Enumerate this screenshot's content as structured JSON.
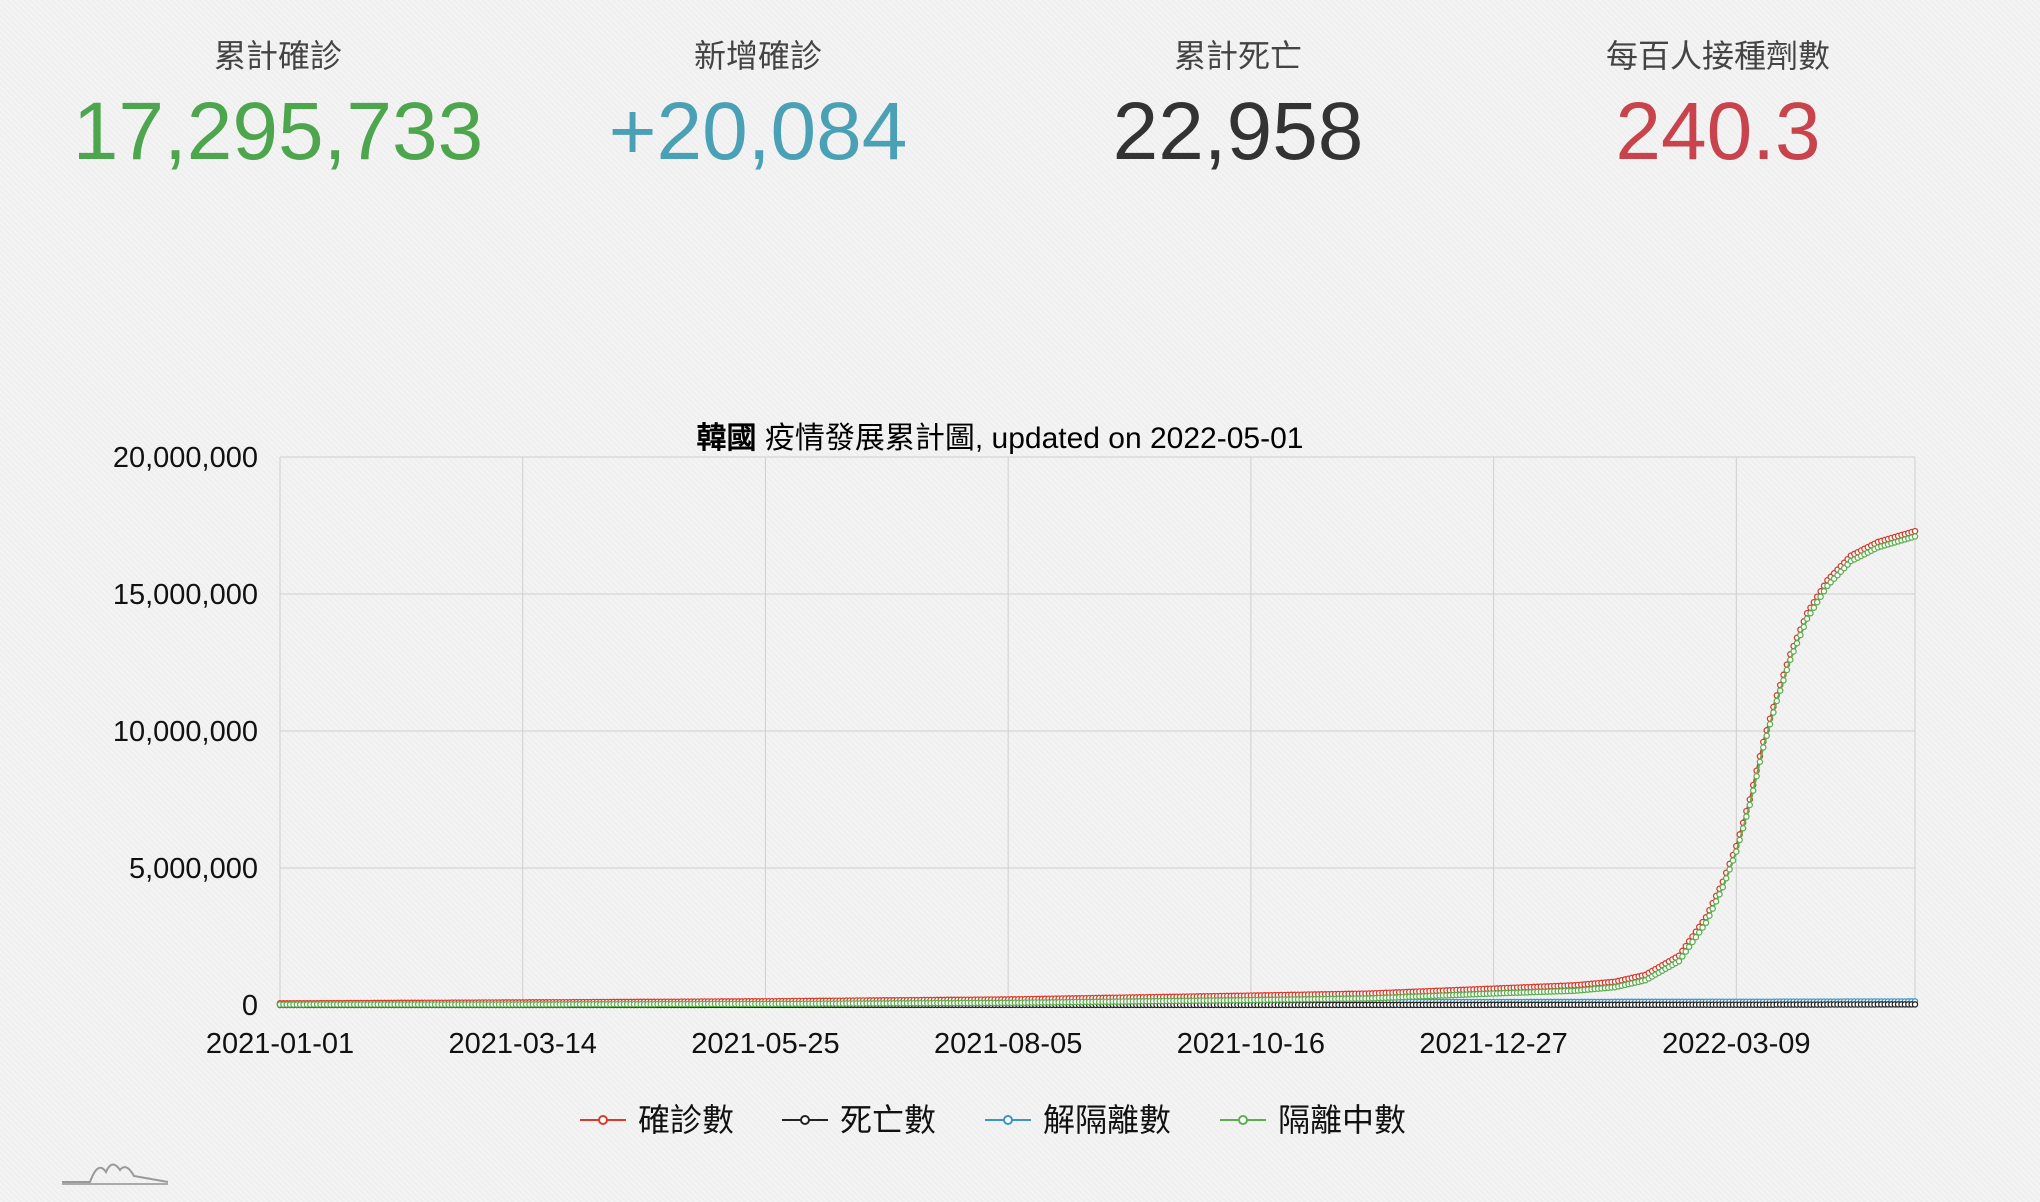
{
  "stats": [
    {
      "label": "累計確診",
      "value": "17,295,733",
      "color": "#4da64d"
    },
    {
      "label": "新增確診",
      "value": "+20,084",
      "color": "#4aa0b5"
    },
    {
      "label": "累計死亡",
      "value": "22,958",
      "color": "#333333"
    },
    {
      "label": "每百人接種劑數",
      "value": "240.3",
      "color": "#c8434b"
    }
  ],
  "chart_data": {
    "type": "line",
    "title_bold": "韓國",
    "title_rest": " 疫情發展累計圖, updated on 2022-05-01",
    "x_start": "2021-01-01",
    "x_end": "2022-05-01",
    "x_ticks": [
      "2021-01-01",
      "2021-03-14",
      "2021-05-25",
      "2021-08-05",
      "2021-10-16",
      "2021-12-27",
      "2022-03-09"
    ],
    "y_ticks": [
      "20,000,000",
      "15,000,000",
      "10,000,000",
      "5,000,000",
      "0"
    ],
    "ylim": [
      0,
      20000000
    ],
    "grid": true,
    "legend_position": "bottom",
    "series": [
      {
        "name": "確診數",
        "color": "#d93a2b",
        "points": [
          [
            "2021-01-01",
            62000
          ],
          [
            "2021-03-14",
            96000
          ],
          [
            "2021-05-25",
            137000
          ],
          [
            "2021-08-05",
            205000
          ],
          [
            "2021-10-16",
            345000
          ],
          [
            "2021-11-20",
            420000
          ],
          [
            "2021-12-27",
            600000
          ],
          [
            "2022-01-20",
            720000
          ],
          [
            "2022-02-01",
            850000
          ],
          [
            "2022-02-10",
            1100000
          ],
          [
            "2022-02-20",
            1800000
          ],
          [
            "2022-02-28",
            3200000
          ],
          [
            "2022-03-05",
            4500000
          ],
          [
            "2022-03-09",
            5800000
          ],
          [
            "2022-03-13",
            7500000
          ],
          [
            "2022-03-17",
            9600000
          ],
          [
            "2022-03-21",
            11300000
          ],
          [
            "2022-03-25",
            12800000
          ],
          [
            "2022-03-30",
            14300000
          ],
          [
            "2022-04-05",
            15500000
          ],
          [
            "2022-04-12",
            16400000
          ],
          [
            "2022-04-20",
            16900000
          ],
          [
            "2022-05-01",
            17295733
          ]
        ]
      },
      {
        "name": "死亡數",
        "color": "#222222",
        "points": [
          [
            "2021-01-01",
            900
          ],
          [
            "2021-06-01",
            2000
          ],
          [
            "2021-12-27",
            5500
          ],
          [
            "2022-03-09",
            10000
          ],
          [
            "2022-05-01",
            22958
          ]
        ]
      },
      {
        "name": "解隔離數",
        "color": "#3a94c9",
        "points": [
          [
            "2021-01-01",
            45000
          ],
          [
            "2021-06-01",
            95000
          ],
          [
            "2021-12-27",
            110000
          ],
          [
            "2022-03-09",
            120000
          ],
          [
            "2022-05-01",
            130000
          ]
        ]
      },
      {
        "name": "隔離中數",
        "color": "#5cae4f",
        "points": [
          [
            "2021-01-01",
            16000
          ],
          [
            "2021-03-14",
            20000
          ],
          [
            "2021-05-25",
            40000
          ],
          [
            "2021-08-05",
            80000
          ],
          [
            "2021-10-16",
            180000
          ],
          [
            "2021-11-20",
            240000
          ],
          [
            "2021-12-27",
            420000
          ],
          [
            "2022-01-20",
            520000
          ],
          [
            "2022-02-01",
            650000
          ],
          [
            "2022-02-10",
            900000
          ],
          [
            "2022-02-20",
            1600000
          ],
          [
            "2022-02-28",
            3000000
          ],
          [
            "2022-03-05",
            4300000
          ],
          [
            "2022-03-09",
            5600000
          ],
          [
            "2022-03-13",
            7300000
          ],
          [
            "2022-03-17",
            9400000
          ],
          [
            "2022-03-21",
            11100000
          ],
          [
            "2022-03-25",
            12600000
          ],
          [
            "2022-03-30",
            14100000
          ],
          [
            "2022-04-05",
            15300000
          ],
          [
            "2022-04-12",
            16200000
          ],
          [
            "2022-04-20",
            16700000
          ],
          [
            "2022-05-01",
            17100000
          ]
        ]
      }
    ]
  }
}
